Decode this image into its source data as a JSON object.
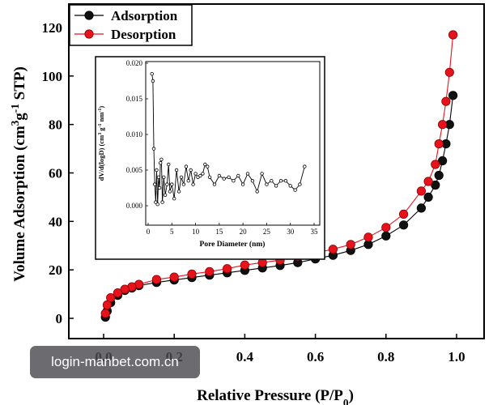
{
  "chart_data": [
    {
      "type": "line",
      "xlabel": "Relative Pressure (P/P0)",
      "ylabel": "Volume Adsorption (cm3g-1 STP)",
      "xlim": [
        0.0,
        1.0
      ],
      "ylim": [
        -5,
        125
      ],
      "xticks": [
        "0.0",
        "0.2",
        "0.4",
        "0.6",
        "0.8",
        "1.0"
      ],
      "yticks": [
        "0",
        "20",
        "40",
        "60",
        "80",
        "100",
        "120"
      ],
      "legend_position": "top-left",
      "series": [
        {
          "name": "Adsorption",
          "color": "#000000",
          "marker": "filled-circle",
          "x": [
            0.005,
            0.01,
            0.02,
            0.04,
            0.06,
            0.08,
            0.1,
            0.15,
            0.2,
            0.25,
            0.3,
            0.35,
            0.4,
            0.45,
            0.5,
            0.55,
            0.6,
            0.65,
            0.7,
            0.75,
            0.8,
            0.85,
            0.9,
            0.92,
            0.94,
            0.95,
            0.96,
            0.97,
            0.98,
            0.99
          ],
          "y": [
            0.5,
            3.0,
            6.5,
            9.5,
            11.5,
            12.5,
            13.5,
            14.8,
            15.8,
            16.8,
            17.8,
            18.8,
            19.8,
            20.8,
            21.8,
            23.0,
            24.5,
            26.0,
            28.0,
            30.5,
            34.0,
            38.5,
            45.5,
            50.0,
            55.0,
            59.0,
            65.0,
            72.0,
            80.0,
            92.0
          ]
        },
        {
          "name": "Desorption",
          "color": "#e8121c",
          "marker": "filled-circle",
          "x": [
            0.99,
            0.98,
            0.97,
            0.96,
            0.95,
            0.94,
            0.92,
            0.9,
            0.85,
            0.8,
            0.75,
            0.7,
            0.65,
            0.6,
            0.55,
            0.5,
            0.45,
            0.4,
            0.35,
            0.3,
            0.25,
            0.2,
            0.15,
            0.1,
            0.08,
            0.06,
            0.04,
            0.02,
            0.01,
            0.005
          ],
          "y": [
            117.0,
            101.5,
            89.5,
            80.0,
            72.0,
            63.5,
            56.5,
            52.5,
            43.0,
            37.5,
            33.5,
            30.5,
            28.5,
            27.0,
            25.5,
            24.0,
            23.0,
            22.0,
            20.5,
            19.3,
            18.3,
            17.0,
            16.0,
            14.0,
            13.0,
            12.0,
            10.5,
            8.5,
            5.5,
            2.0
          ]
        }
      ]
    },
    {
      "type": "line",
      "xlabel": "Pore Diameter (nm)",
      "ylabel": "dV/d(logD) (cm3 g-1 nm-1)",
      "xlim": [
        0,
        35
      ],
      "ylim": [
        -0.001,
        0.02
      ],
      "xticks": [
        "0",
        "5",
        "10",
        "15",
        "20",
        "25",
        "30",
        "35"
      ],
      "yticks": [
        "0.000",
        "0.005",
        "0.010",
        "0.015",
        "0.020"
      ],
      "series": [
        {
          "color": "#000000",
          "marker": "small-circle",
          "x": [
            0.8,
            1.0,
            1.2,
            1.4,
            1.6,
            1.8,
            2.0,
            2.2,
            2.4,
            2.6,
            2.8,
            3.0,
            3.3,
            3.6,
            4.0,
            4.3,
            4.6,
            5.0,
            5.5,
            6.0,
            6.5,
            7.0,
            7.5,
            8.0,
            8.5,
            9.0,
            9.5,
            10.0,
            10.5,
            11.0,
            11.5,
            12.0,
            12.5,
            13.0,
            14.0,
            15.0,
            16.0,
            17.0,
            18.0,
            19.0,
            20.0,
            21.0,
            22.0,
            23.0,
            24.0,
            25.0,
            26.0,
            27.0,
            28.0,
            29.0,
            30.0,
            31.0,
            32.0,
            33.0
          ],
          "y": [
            0.0185,
            0.0175,
            0.008,
            0.003,
            0.0005,
            0.005,
            0.0002,
            0.004,
            0.0025,
            0.006,
            0.0065,
            0.0005,
            0.004,
            0.0015,
            0.003,
            0.0058,
            0.002,
            0.003,
            0.001,
            0.005,
            0.002,
            0.004,
            0.003,
            0.0055,
            0.0035,
            0.005,
            0.003,
            0.0045,
            0.004,
            0.0042,
            0.0045,
            0.0058,
            0.0055,
            0.004,
            0.003,
            0.0042,
            0.0038,
            0.004,
            0.0035,
            0.0042,
            0.003,
            0.0045,
            0.0035,
            0.002,
            0.0045,
            0.003,
            0.0035,
            0.0028,
            0.0035,
            0.0035,
            0.0028,
            0.0022,
            0.003,
            0.0055
          ]
        }
      ]
    }
  ],
  "watermark": "login-manbet.com.cn"
}
